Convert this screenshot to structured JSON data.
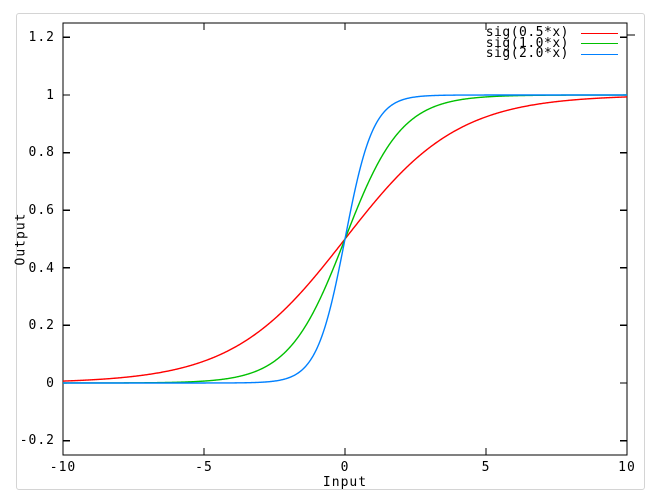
{
  "chart_data": {
    "type": "line",
    "title": "",
    "xlabel": "Input",
    "ylabel": "Output",
    "xlim": [
      -10,
      10
    ],
    "ylim": [
      -0.25,
      1.25
    ],
    "xticks": [
      -10,
      -5,
      0,
      5,
      10
    ],
    "yticks": [
      -0.2,
      0,
      0.2,
      0.4,
      0.6,
      0.8,
      1,
      1.2
    ],
    "xtick_labels": [
      "-10",
      "-5",
      "0",
      "5",
      "10"
    ],
    "ytick_labels": [
      "-0.2",
      "0",
      "0.2",
      "0.4",
      "0.6",
      "0.8",
      "1",
      "1.2"
    ],
    "grid": false,
    "legend_position": "top-right-inside",
    "border_color": "#000000",
    "x": [
      -10,
      -9,
      -8,
      -7,
      -6,
      -5,
      -4,
      -3,
      -2,
      -1,
      0,
      1,
      2,
      3,
      4,
      5,
      6,
      7,
      8,
      9,
      10
    ],
    "series": [
      {
        "name": "sig(0.5*x)",
        "color": "#ff0000",
        "sigmoid_k": 0.5,
        "values": [
          0.0067,
          0.011,
          0.018,
          0.0293,
          0.0474,
          0.0759,
          0.1192,
          0.1824,
          0.2689,
          0.3775,
          0.5,
          0.6225,
          0.7311,
          0.8176,
          0.8808,
          0.9241,
          0.9526,
          0.9707,
          0.982,
          0.989,
          0.9933
        ]
      },
      {
        "name": "sig(1.0*x)",
        "color": "#00c000",
        "sigmoid_k": 1.0,
        "values": [
          0.0,
          0.0001,
          0.0003,
          0.0009,
          0.0025,
          0.0067,
          0.018,
          0.0474,
          0.1192,
          0.2689,
          0.5,
          0.7311,
          0.8808,
          0.9526,
          0.982,
          0.9933,
          0.9975,
          0.9991,
          0.9997,
          0.9999,
          1.0
        ]
      },
      {
        "name": "sig(2.0*x)",
        "color": "#0080ff",
        "sigmoid_k": 2.0,
        "values": [
          0.0,
          0.0,
          0.0,
          0.0,
          0.0,
          0.0,
          0.0003,
          0.0025,
          0.018,
          0.1192,
          0.5,
          0.8808,
          0.982,
          0.9975,
          0.9997,
          1.0,
          1.0,
          1.0,
          1.0,
          1.0,
          1.0
        ]
      }
    ]
  }
}
